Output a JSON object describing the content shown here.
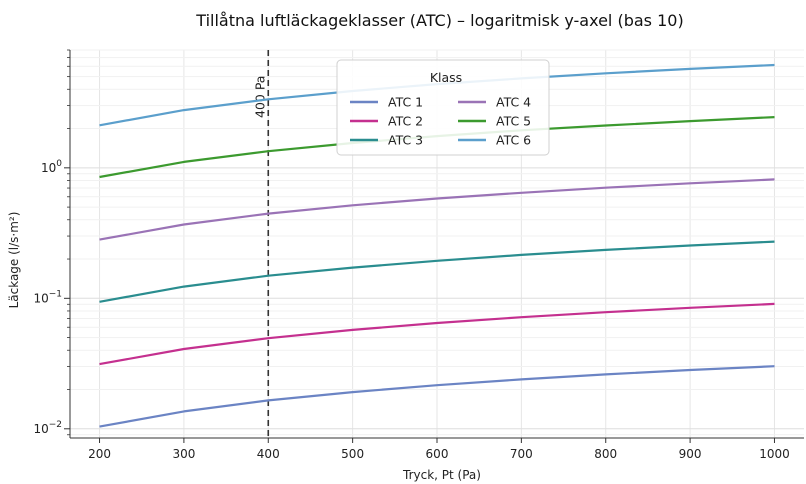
{
  "chart_data": {
    "type": "line",
    "title": "Tillåtna luftläckageklasser (ATC) – logaritmisk y-axel (bas 10)",
    "xlabel": "Tryck, Pt (Pa)",
    "ylabel": "Läckage (l/s·m²)",
    "xlim": [
      165,
      1035
    ],
    "ylim": [
      0.0085,
      8.0
    ],
    "yscale": "log",
    "x_ticks": [
      200,
      300,
      400,
      500,
      600,
      700,
      800,
      900,
      1000
    ],
    "y_ticks": [
      {
        "value": 0.01,
        "base": "10",
        "exp": "−2"
      },
      {
        "value": 0.1,
        "base": "10",
        "exp": "−1"
      },
      {
        "value": 1,
        "base": "10",
        "exp": "0"
      }
    ],
    "grid": true,
    "legend": {
      "title": "Klass",
      "placement": "top-center",
      "columns": 2
    },
    "x": [
      200,
      300,
      400,
      500,
      600,
      700,
      800,
      900,
      1000
    ],
    "series": [
      {
        "name": "ATC 1",
        "color": "#6b84c4",
        "values": [
          0.0104,
          0.0136,
          0.0165,
          0.0191,
          0.0216,
          0.0239,
          0.0261,
          0.0282,
          0.0302
        ]
      },
      {
        "name": "ATC 2",
        "color": "#c4308f",
        "values": [
          0.0313,
          0.0409,
          0.0495,
          0.0573,
          0.0647,
          0.0716,
          0.0782,
          0.0846,
          0.0906
        ]
      },
      {
        "name": "ATC 3",
        "color": "#2a8d8f",
        "values": [
          0.094,
          0.123,
          0.149,
          0.172,
          0.194,
          0.215,
          0.235,
          0.254,
          0.272
        ]
      },
      {
        "name": "ATC 4",
        "color": "#9a73b6",
        "values": [
          0.282,
          0.368,
          0.446,
          0.516,
          0.582,
          0.644,
          0.704,
          0.761,
          0.816
        ]
      },
      {
        "name": "ATC 5",
        "color": "#3c9a2f",
        "values": [
          0.85,
          1.11,
          1.34,
          1.55,
          1.75,
          1.94,
          2.11,
          2.28,
          2.45
        ]
      },
      {
        "name": "ATC 6",
        "color": "#5b9fcc",
        "values": [
          2.12,
          2.77,
          3.35,
          3.88,
          4.38,
          4.85,
          5.3,
          5.73,
          6.14
        ]
      }
    ],
    "annotations": [
      {
        "x": 400,
        "text": "400 Pa",
        "style": "dashed vertical line"
      }
    ]
  }
}
